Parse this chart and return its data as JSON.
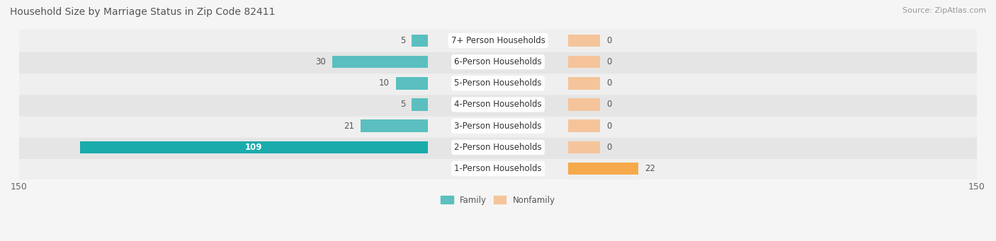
{
  "title": "Household Size by Marriage Status in Zip Code 82411",
  "source": "Source: ZipAtlas.com",
  "categories": [
    "7+ Person Households",
    "6-Person Households",
    "5-Person Households",
    "4-Person Households",
    "3-Person Households",
    "2-Person Households",
    "1-Person Households"
  ],
  "family_values": [
    5,
    30,
    10,
    5,
    21,
    109,
    0
  ],
  "nonfamily_values": [
    0,
    0,
    0,
    0,
    0,
    0,
    22
  ],
  "family_color": "#5BBFBF",
  "family_color_dark": "#1AABAB",
  "nonfamily_color": "#F5C49A",
  "nonfamily_color_dark": "#F5A94A",
  "xlim": 150,
  "bar_height": 0.58,
  "title_fontsize": 10,
  "source_fontsize": 8,
  "label_fontsize": 8.5,
  "value_fontsize": 8.5,
  "tick_fontsize": 9,
  "row_colors": [
    "#efefef",
    "#e5e5e5"
  ],
  "bg_color": "#f5f5f5"
}
